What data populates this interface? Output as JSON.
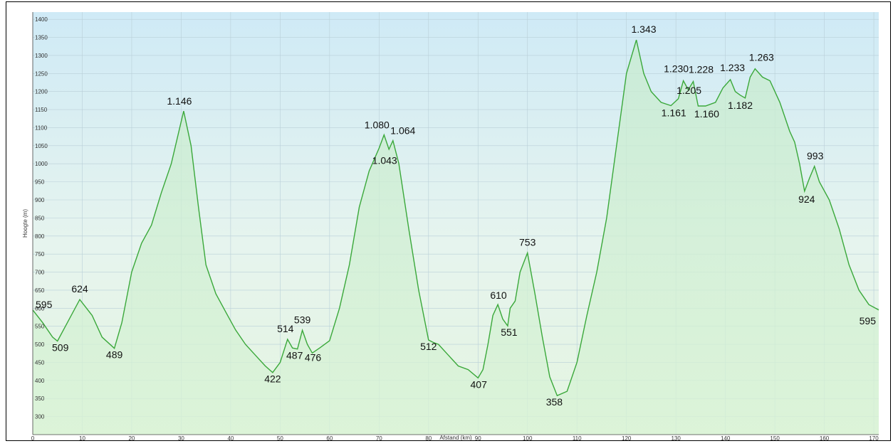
{
  "chart_data": {
    "type": "area",
    "xlabel": "Afstand  (km)",
    "ylabel": "Hoogte (m)",
    "xlim": [
      0,
      171
    ],
    "ylim": [
      250,
      1420
    ],
    "x_ticks": [
      0,
      10,
      20,
      30,
      40,
      50,
      60,
      70,
      80,
      90,
      100,
      110,
      120,
      130,
      140,
      150,
      160,
      170
    ],
    "y_ticks": [
      300,
      350,
      400,
      450,
      500,
      550,
      600,
      650,
      700,
      750,
      800,
      850,
      900,
      950,
      1000,
      1050,
      1100,
      1150,
      1200,
      1250,
      1300,
      1350,
      1400
    ],
    "grid": true,
    "line_color": "#3aa83a",
    "series": [
      {
        "x": [
          0,
          2,
          4,
          5,
          7,
          9.5,
          12,
          14,
          16.5,
          18,
          20,
          22,
          24,
          26,
          28,
          30.5,
          32,
          33.5,
          35,
          37,
          39,
          41,
          43,
          45,
          47,
          48.5,
          50,
          51.5,
          52.5,
          53.5,
          54.5,
          55.5,
          56.5,
          58,
          60,
          62,
          64,
          66,
          68,
          70,
          71,
          72,
          72.8,
          74,
          76,
          78,
          80,
          81,
          82,
          84,
          86,
          88,
          90,
          91,
          92,
          93,
          94,
          95,
          96,
          96.5,
          97.5,
          98.5,
          100,
          101.5,
          103,
          104.5,
          106,
          108,
          110,
          112,
          114,
          116,
          118,
          120,
          122,
          123.5,
          125,
          127,
          129,
          130.5,
          131.5,
          132.5,
          133.5,
          134.5,
          136,
          138,
          139.5,
          141,
          142,
          143,
          144,
          145,
          146,
          147.5,
          149,
          151,
          153,
          154,
          155,
          156,
          157,
          158,
          159,
          161,
          163,
          165,
          167,
          169,
          171
        ],
        "y": [
          595,
          560,
          520,
          509,
          560,
          624,
          580,
          520,
          489,
          560,
          700,
          780,
          830,
          920,
          1000,
          1146,
          1050,
          880,
          720,
          640,
          590,
          540,
          500,
          470,
          440,
          422,
          450,
          514,
          490,
          487,
          539,
          500,
          476,
          490,
          510,
          600,
          720,
          880,
          980,
          1043,
          1080,
          1040,
          1064,
          1000,
          820,
          650,
          512,
          505,
          500,
          470,
          440,
          430,
          407,
          430,
          500,
          580,
          610,
          570,
          551,
          600,
          620,
          700,
          753,
          640,
          520,
          410,
          358,
          370,
          450,
          580,
          700,
          850,
          1050,
          1250,
          1343,
          1250,
          1200,
          1170,
          1161,
          1180,
          1230,
          1205,
          1228,
          1160,
          1160,
          1170,
          1210,
          1233,
          1200,
          1190,
          1182,
          1240,
          1263,
          1240,
          1230,
          1170,
          1090,
          1060,
          1000,
          924,
          960,
          993,
          950,
          900,
          820,
          720,
          650,
          610,
          595
        ]
      }
    ],
    "annotations": [
      {
        "text": "595",
        "x": 0,
        "y": 595
      },
      {
        "text": "509",
        "x": 5,
        "y": 509
      },
      {
        "text": "624",
        "x": 9.5,
        "y": 624
      },
      {
        "text": "489",
        "x": 16.5,
        "y": 489
      },
      {
        "text": "1.146",
        "x": 30.5,
        "y": 1146
      },
      {
        "text": "422",
        "x": 48.5,
        "y": 422
      },
      {
        "text": "514",
        "x": 51.5,
        "y": 514
      },
      {
        "text": "487",
        "x": 53.5,
        "y": 487
      },
      {
        "text": "539",
        "x": 54.5,
        "y": 539
      },
      {
        "text": "476",
        "x": 56.5,
        "y": 476
      },
      {
        "text": "1.080",
        "x": 71,
        "y": 1080
      },
      {
        "text": "1.043",
        "x": 72,
        "y": 1043
      },
      {
        "text": "1.064",
        "x": 72.8,
        "y": 1064
      },
      {
        "text": "512",
        "x": 80,
        "y": 512
      },
      {
        "text": "407",
        "x": 91,
        "y": 407
      },
      {
        "text": "610",
        "x": 95,
        "y": 610
      },
      {
        "text": "551",
        "x": 96,
        "y": 551
      },
      {
        "text": "753",
        "x": 100,
        "y": 753
      },
      {
        "text": "358",
        "x": 106,
        "y": 358
      },
      {
        "text": "1.343",
        "x": 123.5,
        "y": 1343
      },
      {
        "text": "1.161",
        "x": 129,
        "y": 1161
      },
      {
        "text": "1.230",
        "x": 130.5,
        "y": 1230
      },
      {
        "text": "1.205",
        "x": 131.5,
        "y": 1205
      },
      {
        "text": "1.228",
        "x": 132.5,
        "y": 1228
      },
      {
        "text": "1.160",
        "x": 134.5,
        "y": 1160
      },
      {
        "text": "1.233",
        "x": 141,
        "y": 1233
      },
      {
        "text": "1.182",
        "x": 143,
        "y": 1182
      },
      {
        "text": "1.263",
        "x": 146,
        "y": 1263
      },
      {
        "text": "924",
        "x": 156,
        "y": 924
      },
      {
        "text": "993",
        "x": 157,
        "y": 993
      },
      {
        "text": "595",
        "x": 171,
        "y": 595
      }
    ]
  }
}
